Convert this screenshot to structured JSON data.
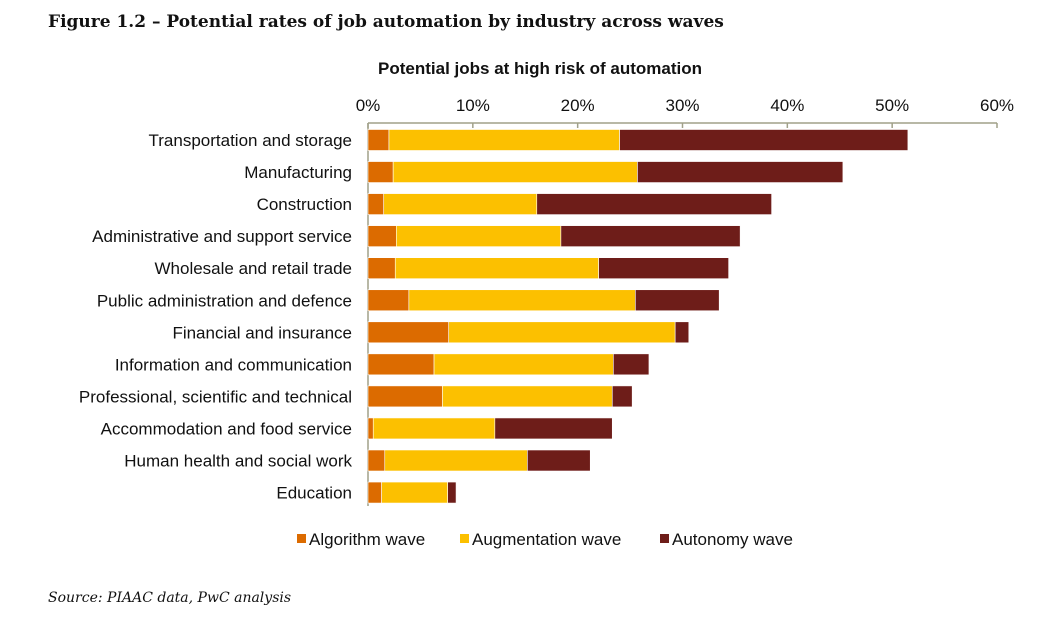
{
  "figure_title": "Figure 1.2 – Potential rates of job automation by industry across waves",
  "source": "Source: PIAAC data, PwC analysis",
  "chart_data": {
    "type": "bar",
    "orientation": "horizontal",
    "stacked": true,
    "title": "Potential jobs at high risk of automation",
    "xlim": [
      0,
      60
    ],
    "xticks": [
      "0%",
      "10%",
      "20%",
      "30%",
      "40%",
      "50%",
      "60%"
    ],
    "x_axis_position": "top",
    "grid": false,
    "legend_position": "bottom",
    "categories": [
      "Transportation and storage",
      "Manufacturing",
      "Construction",
      "Administrative and support service",
      "Wholesale and retail trade",
      "Public administration and defence",
      "Financial and insurance",
      "Information and communication",
      "Professional, scientific and technical",
      "Accommodation and food service",
      "Human health and social work",
      "Education"
    ],
    "series": [
      {
        "name": "Algorithm wave",
        "color": "#dc6b00",
        "values": [
          2.0,
          2.4,
          1.5,
          2.7,
          2.6,
          3.9,
          7.7,
          6.3,
          7.1,
          0.5,
          1.6,
          1.3
        ]
      },
      {
        "name": "Augmentation wave",
        "color": "#fcc000",
        "values": [
          22.0,
          23.3,
          14.6,
          15.7,
          19.4,
          21.6,
          21.6,
          17.1,
          16.2,
          11.6,
          13.6,
          6.3
        ]
      },
      {
        "name": "Autonomy wave",
        "color": "#6e1d19",
        "values": [
          27.5,
          19.6,
          22.4,
          17.1,
          12.4,
          8.0,
          1.3,
          3.4,
          1.9,
          11.2,
          6.0,
          0.8
        ]
      }
    ]
  }
}
